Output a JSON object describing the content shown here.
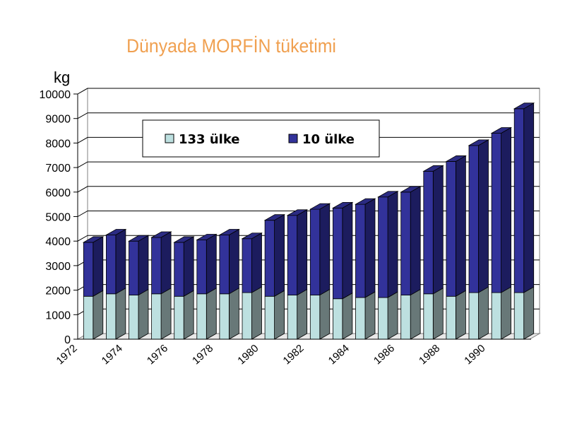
{
  "chart_data": {
    "type": "bar",
    "stacked": true,
    "title": "Dünyada MORFİN tüketimi",
    "ylabel": "kg",
    "xlabel": "",
    "ylim": [
      0,
      10000
    ],
    "yticks": [
      "0",
      "1000",
      "2000",
      "3000",
      "4000",
      "5000",
      "6000",
      "7000",
      "8000",
      "9000",
      "10000"
    ],
    "categories": [
      "1972",
      "1973",
      "1974",
      "1975",
      "1976",
      "1977",
      "1978",
      "1979",
      "1980",
      "1981",
      "1982",
      "1983",
      "1984",
      "1985",
      "1986",
      "1987",
      "1988",
      "1989",
      "1990",
      "1991"
    ],
    "xtick_labels": [
      "1972",
      "1974",
      "1976",
      "1978",
      "1980",
      "1982",
      "1984",
      "1986",
      "1988",
      "1990"
    ],
    "grid": true,
    "legend_position": "top-left",
    "series": [
      {
        "name": "133 ülke",
        "color": "#bde0e0",
        "values": [
          1750,
          1850,
          1800,
          1850,
          1750,
          1850,
          1850,
          1900,
          1750,
          1800,
          1800,
          1650,
          1700,
          1700,
          1800,
          1850,
          1750,
          1900,
          1900,
          1900
        ]
      },
      {
        "name": "10 ülke",
        "color": "#32329a",
        "values": [
          2200,
          2400,
          2200,
          2300,
          2200,
          2200,
          2400,
          2200,
          3100,
          3250,
          3500,
          3700,
          3800,
          4100,
          4200,
          5000,
          5500,
          6000,
          6500,
          7500
        ]
      }
    ]
  }
}
